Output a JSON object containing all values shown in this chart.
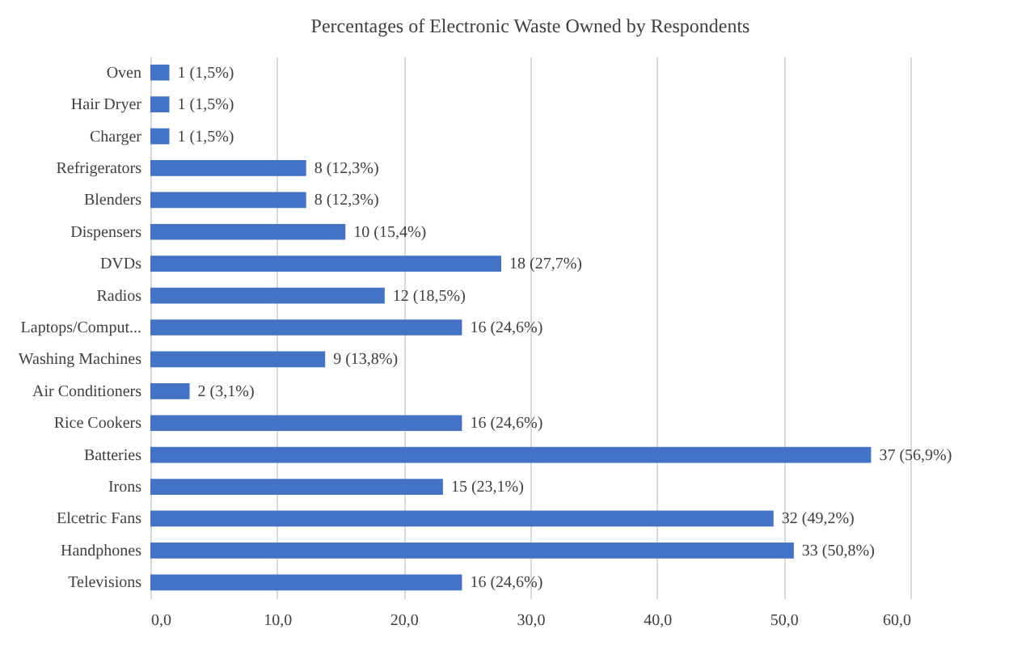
{
  "chart_data": {
    "type": "bar",
    "orientation": "horizontal",
    "title": "Percentages of Electronic Waste Owned by Respondents",
    "categories": [
      "Oven",
      "Hair Dryer",
      "Charger",
      "Refrigerators",
      "Blenders",
      "Dispensers",
      "DVDs",
      "Radios",
      "Laptops/Comput...",
      "Washing Machines",
      "Air Conditioners",
      "Rice Cookers",
      "Batteries",
      "Irons",
      "Elcetric Fans",
      "Handphones",
      "Televisions"
    ],
    "values": [
      1.5,
      1.5,
      1.5,
      12.3,
      12.3,
      15.4,
      27.7,
      18.5,
      24.6,
      13.8,
      3.1,
      24.6,
      56.9,
      23.1,
      49.2,
      50.8,
      24.6
    ],
    "value_labels": [
      "1 (1,5%)",
      "1 (1,5%)",
      "1 (1,5%)",
      "8 (12,3%)",
      "8 (12,3%)",
      "10 (15,4%)",
      "18 (27,7%)",
      "12 (18,5%)",
      "16 (24,6%)",
      "9 (13,8%)",
      "2 (3,1%)",
      "16 (24,6%)",
      "37 (56,9%)",
      "15 (23,1%)",
      "32 (49,2%)",
      "33 (50,8%)",
      "16 (24,6%)"
    ],
    "color": "#4472c4",
    "xlim": [
      0,
      60
    ],
    "xticks": [
      {
        "value": 0,
        "label": "0,0"
      },
      {
        "value": 10,
        "label": "10,0"
      },
      {
        "value": 20,
        "label": "20,0"
      },
      {
        "value": 30,
        "label": "30,0"
      },
      {
        "value": 40,
        "label": "40,0"
      },
      {
        "value": 50,
        "label": "50,0"
      },
      {
        "value": 60,
        "label": "60,0"
      }
    ],
    "grid": "x"
  }
}
